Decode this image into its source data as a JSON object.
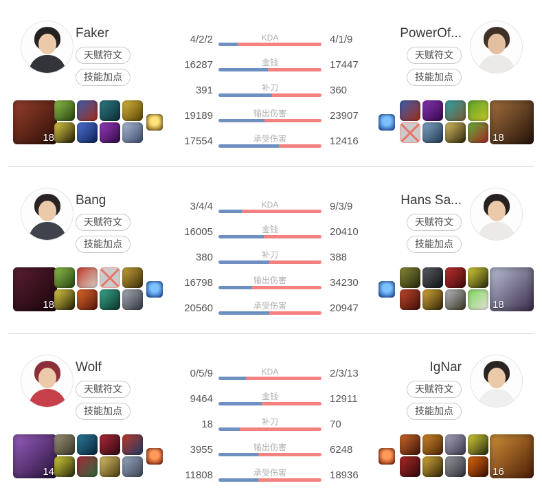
{
  "ui": {
    "rune_button": "天赋符文",
    "skill_button": "技能加点"
  },
  "colors": {
    "bar_left": "#6e90c1",
    "bar_right": "#f3817f",
    "separator": "#dcdcdc"
  },
  "rows": [
    {
      "left_player": {
        "name": "Faker",
        "level": "18",
        "avatar": {
          "hair": "#262220",
          "skin": "#ecc9a8",
          "shirt": "#33343a"
        },
        "champion": [
          "#96402a",
          "#2e0d08"
        ],
        "items": [
          [
            "#8fc04a",
            "#26420f"
          ],
          [
            "#3b5fb0",
            "#a32c17"
          ],
          [
            "#2f7d84",
            "#0c2b33"
          ],
          [
            "#d9b93a",
            "#564208"
          ],
          [
            "#e3cf45",
            "#1f1c07"
          ],
          [
            "#4f74d8",
            "#0d1f52"
          ],
          [
            "#9a3bc0",
            "#2d0b42"
          ],
          [
            "#aebfd4",
            "#39476b"
          ]
        ],
        "trinket": [
          "#ffe27a",
          "#6e4e0a"
        ]
      },
      "right_player": {
        "name": "PowerOf...",
        "level": "18",
        "avatar": {
          "hair": "#3f3028",
          "skin": "#e4bfa0",
          "shirt": "#eceae7"
        },
        "champion": [
          "#a5713d",
          "#231209"
        ],
        "items": [
          [
            "#3b5fb0",
            "#a32c17"
          ],
          [
            "#8a35b5",
            "#32094a"
          ],
          [
            "#2fa3a8",
            "#7a5a33"
          ],
          [
            "#58a32e",
            "#c7c322"
          ],
          {
            "empty": true
          },
          [
            "#7fa8c9",
            "#24364f"
          ],
          [
            "#d9c268",
            "#2e2408"
          ],
          [
            "#63b53a",
            "#a32222"
          ]
        ],
        "trinket": [
          "#7ec3ff",
          "#0d3f9e"
        ]
      },
      "stats": [
        {
          "label": "KDA",
          "left": "4/2/2",
          "right": "4/1/9"
        },
        {
          "label": "金钱",
          "left": "16287",
          "right": "17447"
        },
        {
          "label": "补刀",
          "left": "391",
          "right": "360"
        },
        {
          "label": "输出伤害",
          "left": "19189",
          "right": "23907"
        },
        {
          "label": "承受伤害",
          "left": "17554",
          "right": "12416"
        }
      ]
    },
    {
      "left_player": {
        "name": "Bang",
        "level": "18",
        "avatar": {
          "hair": "#2a2522",
          "skin": "#ecc9a8",
          "shirt": "#3f444c"
        },
        "champion": [
          "#5c1f33",
          "#170409"
        ],
        "items": [
          [
            "#8fc04a",
            "#26420f"
          ],
          [
            "#c23a2a",
            "#d8d4cc"
          ],
          {
            "empty": true
          },
          [
            "#c9a43a",
            "#3a2c08"
          ],
          [
            "#e3cf45",
            "#1f1c07"
          ],
          [
            "#e06a2a",
            "#55150a"
          ],
          [
            "#3aa98f",
            "#0a3328"
          ],
          [
            "#aab0b8",
            "#2e3340"
          ]
        ],
        "trinket": [
          "#7ec3ff",
          "#0d3f9e"
        ]
      },
      "right_player": {
        "name": "Hans Sa...",
        "level": "18",
        "avatar": {
          "hair": "#26211e",
          "skin": "#ecc9a8",
          "shirt": "#ece9e6"
        },
        "champion": [
          "#b9c2d6",
          "#3b2a4a"
        ],
        "items": [
          [
            "#8a8a3a",
            "#23270c"
          ],
          [
            "#5c5f66",
            "#101114"
          ],
          [
            "#c03030",
            "#3d0a0a"
          ],
          [
            "#d9d23a",
            "#23270c"
          ],
          [
            "#c04a2a",
            "#400d08"
          ],
          [
            "#d9ab3a",
            "#2e2408"
          ],
          [
            "#b9bcc4",
            "#3a3320"
          ],
          [
            "#7ed45a",
            "#e8e4dc"
          ]
        ],
        "trinket": [
          "#7ec3ff",
          "#0d3f9e"
        ]
      },
      "stats": [
        {
          "label": "KDA",
          "left": "3/4/4",
          "right": "9/3/9"
        },
        {
          "label": "金钱",
          "left": "16005",
          "right": "20410"
        },
        {
          "label": "补刀",
          "left": "380",
          "right": "388"
        },
        {
          "label": "输出伤害",
          "left": "16798",
          "right": "34230"
        },
        {
          "label": "承受伤害",
          "left": "20560",
          "right": "20947"
        }
      ]
    },
    {
      "left_player": {
        "name": "Wolf",
        "level": "14",
        "avatar": {
          "hair": "#8c2f3a",
          "skin": "#ecc9a8",
          "shirt": "#c6404a"
        },
        "champion": [
          "#9a5fc0",
          "#241036"
        ],
        "items": [
          [
            "#9a9478",
            "#3a3526"
          ],
          [
            "#2a7da0",
            "#0a2234"
          ],
          [
            "#b02a3a",
            "#2e0810"
          ],
          [
            "#c23a2a",
            "#1a3a66"
          ],
          [
            "#d9d23a",
            "#23270c"
          ],
          [
            "#a82a3a",
            "#2a6a3a"
          ],
          [
            "#d9c268",
            "#4a3a10"
          ],
          [
            "#9aa8c0",
            "#3a4456"
          ]
        ],
        "trinket": [
          "#ff9a5a",
          "#7a1402"
        ]
      },
      "right_player": {
        "name": "IgNar",
        "level": "16",
        "avatar": {
          "hair": "#2a2522",
          "skin": "#ecc9a8",
          "shirt": "#efefef"
        },
        "champion": [
          "#d29038",
          "#4a1d08"
        ],
        "items": [
          [
            "#d06a2a",
            "#3a1208"
          ],
          [
            "#d08a2a",
            "#4a2408"
          ],
          [
            "#a8a8c0",
            "#3a3448"
          ],
          [
            "#d9d23a",
            "#23270c"
          ],
          [
            "#b02a2a",
            "#2e0808"
          ],
          [
            "#d9ab3a",
            "#2e2408"
          ],
          [
            "#9a9aa0",
            "#2e3038"
          ],
          [
            "#e06a10",
            "#3a0d02"
          ]
        ],
        "trinket": [
          "#ff9a5a",
          "#7a1402"
        ]
      },
      "stats": [
        {
          "label": "KDA",
          "left": "0/5/9",
          "right": "2/3/13"
        },
        {
          "label": "金钱",
          "left": "9464",
          "right": "12911"
        },
        {
          "label": "补刀",
          "left": "18",
          "right": "70"
        },
        {
          "label": "输出伤害",
          "left": "3955",
          "right": "6248"
        },
        {
          "label": "承受伤害",
          "left": "11808",
          "right": "18936"
        }
      ]
    }
  ]
}
